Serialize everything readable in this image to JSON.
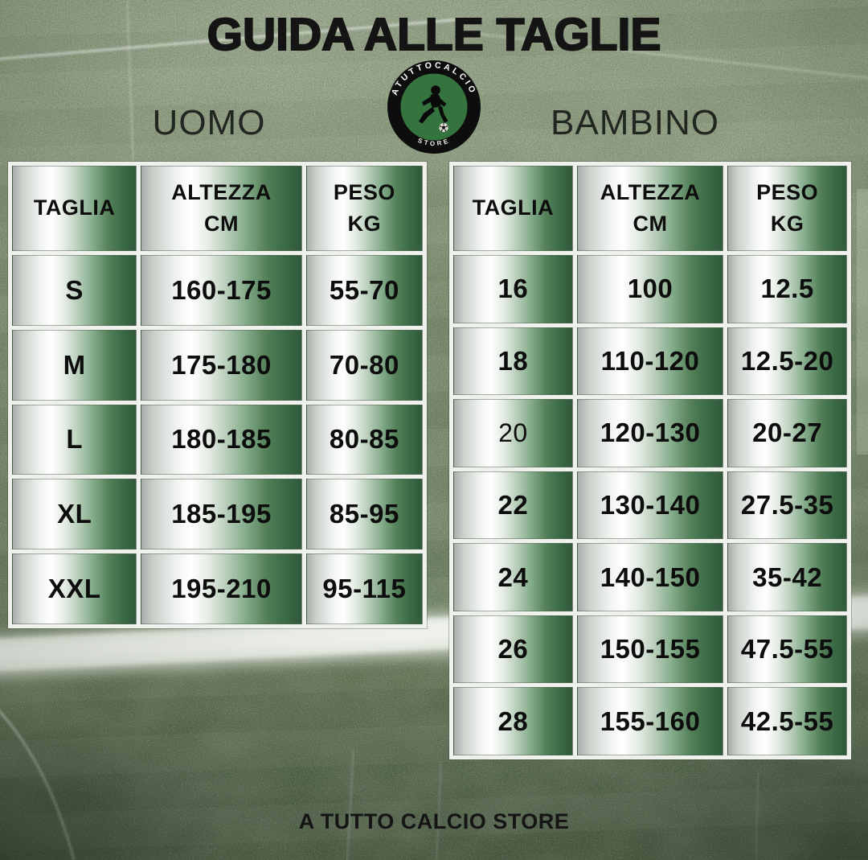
{
  "page": {
    "title": "GUIDA ALLE TAGLIE",
    "footer": "A TUTTO CALCIO STORE"
  },
  "logo": {
    "brand_top": "ATUTTOCALCIO",
    "brand_bottom": "STORE"
  },
  "sections": {
    "uomo": {
      "label": "UOMO"
    },
    "bambino": {
      "label": "BAMBINO"
    }
  },
  "tables": {
    "uomo": {
      "header": [
        [
          "TAGLIA"
        ],
        [
          "ALTEZZA",
          "CM"
        ],
        [
          "PESO",
          "KG"
        ]
      ],
      "rows": [
        {
          "taglia": "S",
          "altezza": "160-175",
          "peso": "55-70"
        },
        {
          "taglia": "M",
          "altezza": "175-180",
          "peso": "70-80"
        },
        {
          "taglia": "L",
          "altezza": "180-185",
          "peso": "80-85"
        },
        {
          "taglia": "XL",
          "altezza": "185-195",
          "peso": "85-95"
        },
        {
          "taglia": "XXL",
          "altezza": "195-210",
          "peso": "95-115"
        }
      ]
    },
    "bambino": {
      "header": [
        [
          "TAGLIA"
        ],
        [
          "ALTEZZA",
          "CM"
        ],
        [
          "PESO",
          "KG"
        ]
      ],
      "rows": [
        {
          "taglia": "16",
          "altezza": "100",
          "peso": "12.5"
        },
        {
          "taglia": "18",
          "altezza": "110-120",
          "peso": "12.5-20"
        },
        {
          "taglia": "20",
          "altezza": "120-130",
          "peso": "20-27",
          "taglia_light": true
        },
        {
          "taglia": "22",
          "altezza": "130-140",
          "peso": "27.5-35"
        },
        {
          "taglia": "24",
          "altezza": "140-150",
          "peso": "35-42"
        },
        {
          "taglia": "26",
          "altezza": "150-155",
          "peso": "47.5-55"
        },
        {
          "taglia": "28",
          "altezza": "155-160",
          "peso": "42.5-55"
        }
      ]
    }
  },
  "colors": {
    "table_green_dark": "#30593a",
    "table_silver": "#c9cec9",
    "cell_divider_white": "#eef1ec",
    "grass_mid": "#75856a",
    "grass_dark": "#4e5f46",
    "logo_green": "#35743f",
    "logo_ring_black": "#0d0d0d",
    "text_black": "#141414",
    "field_line_white": "#f4f7f0"
  }
}
